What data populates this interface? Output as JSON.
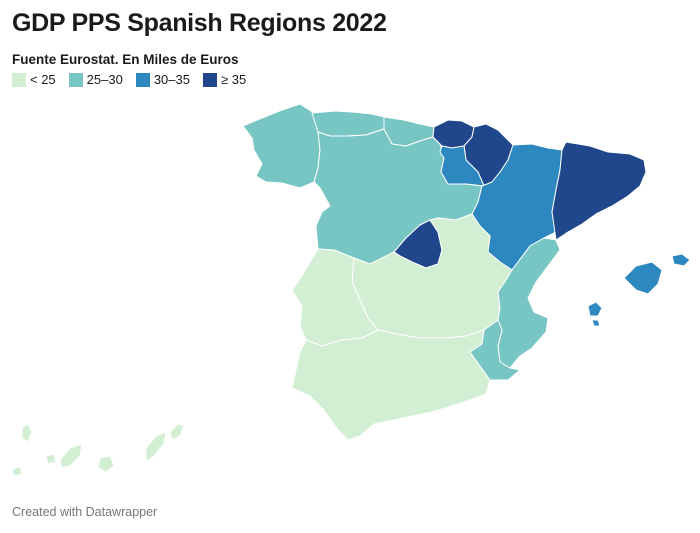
{
  "title": "GDP PPS Spanish Regions 2022",
  "subtitle": "Fuente Eurostat. En Miles de Euros",
  "legend": [
    {
      "label": "< 25",
      "color": "#d2eed3"
    },
    {
      "label": "25–30",
      "color": "#77c6c3"
    },
    {
      "label": "30–35",
      "color": "#2d88c0"
    },
    {
      "label": "≥ 35",
      "color": "#20478b"
    }
  ],
  "credit": "Created with Datawrapper",
  "regions": [
    {
      "id": "galicia",
      "bin": "25–30"
    },
    {
      "id": "asturias",
      "bin": "25–30"
    },
    {
      "id": "cantabria",
      "bin": "25–30"
    },
    {
      "id": "pais-vasco",
      "bin": "≥ 35"
    },
    {
      "id": "navarra",
      "bin": "≥ 35"
    },
    {
      "id": "la-rioja",
      "bin": "30–35"
    },
    {
      "id": "aragon",
      "bin": "30–35"
    },
    {
      "id": "cataluna",
      "bin": "≥ 35"
    },
    {
      "id": "castilla-y-leon",
      "bin": "25–30"
    },
    {
      "id": "madrid",
      "bin": "≥ 35"
    },
    {
      "id": "castilla-la-mancha",
      "bin": "< 25"
    },
    {
      "id": "extremadura",
      "bin": "< 25"
    },
    {
      "id": "andalucia",
      "bin": "< 25"
    },
    {
      "id": "comunidad-valenciana",
      "bin": "25–30"
    },
    {
      "id": "murcia",
      "bin": "25–30"
    },
    {
      "id": "illes-balears",
      "bin": "30–35"
    },
    {
      "id": "canarias",
      "bin": "< 25"
    }
  ]
}
